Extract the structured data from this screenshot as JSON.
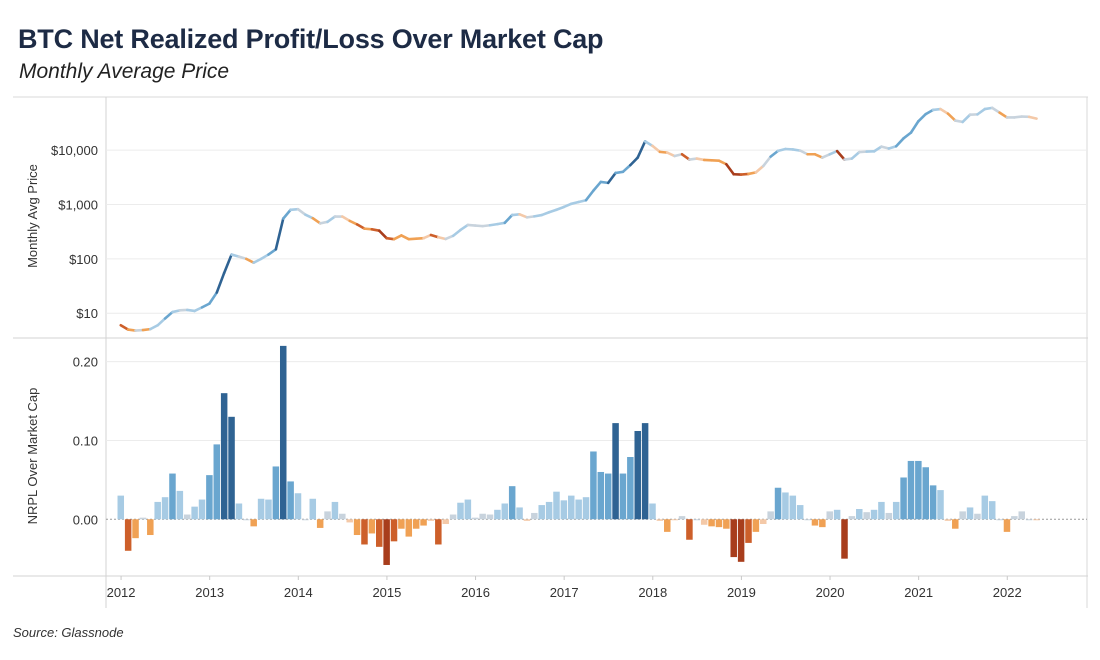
{
  "title": "BTC Net Realized Profit/Loss Over Market Cap",
  "subtitle": "Monthly Average Price",
  "source": "Source: Glassnode",
  "chart_data": [
    {
      "type": "line",
      "ylabel": "Monthly Avg Price",
      "yscale": "log",
      "ylim": [
        3.5,
        95000
      ],
      "yticks": [
        10,
        100,
        1000,
        10000
      ],
      "ytick_labels": [
        "$10",
        "$100",
        "$1,000",
        "$10,000"
      ],
      "xlim": [
        "2011-11-15",
        "2022-12-10"
      ],
      "grid": true,
      "line_colored_by": "NRPL Over Market Cap",
      "points": [
        [
          "2012-01",
          6.0,
          0.03
        ],
        [
          "2012-02",
          5.0,
          -0.04
        ],
        [
          "2012-03",
          4.8,
          -0.024
        ],
        [
          "2012-04",
          4.9,
          0.002
        ],
        [
          "2012-05",
          5.1,
          -0.02
        ],
        [
          "2012-06",
          6.0,
          0.022
        ],
        [
          "2012-07",
          8.0,
          0.028
        ],
        [
          "2012-08",
          10.5,
          0.058
        ],
        [
          "2012-09",
          11.3,
          0.036
        ],
        [
          "2012-10",
          11.5,
          0.006
        ],
        [
          "2012-11",
          11.0,
          0.016
        ],
        [
          "2012-12",
          12.8,
          0.025
        ],
        [
          "2013-01",
          15.0,
          0.056
        ],
        [
          "2013-02",
          24.0,
          0.095
        ],
        [
          "2013-03",
          55.0,
          0.16
        ],
        [
          "2013-04",
          120.0,
          0.13
        ],
        [
          "2013-05",
          110.0,
          0.02
        ],
        [
          "2013-06",
          100.0,
          0.0
        ],
        [
          "2013-07",
          85.0,
          -0.009
        ],
        [
          "2013-08",
          100.0,
          0.026
        ],
        [
          "2013-09",
          120.0,
          0.025
        ],
        [
          "2013-10",
          150.0,
          0.067
        ],
        [
          "2013-11",
          550.0,
          0.22
        ],
        [
          "2013-12",
          800.0,
          0.048
        ],
        [
          "2014-01",
          820.0,
          0.033
        ],
        [
          "2014-02",
          650.0,
          0.0
        ],
        [
          "2014-03",
          560.0,
          0.026
        ],
        [
          "2014-04",
          450.0,
          -0.011
        ],
        [
          "2014-05",
          480.0,
          0.01
        ],
        [
          "2014-06",
          600.0,
          0.022
        ],
        [
          "2014-07",
          600.0,
          0.007
        ],
        [
          "2014-08",
          500.0,
          -0.004
        ],
        [
          "2014-09",
          430.0,
          -0.02
        ],
        [
          "2014-10",
          360.0,
          -0.032
        ],
        [
          "2014-11",
          350.0,
          -0.018
        ],
        [
          "2014-12",
          330.0,
          -0.035
        ],
        [
          "2015-01",
          240.0,
          -0.058
        ],
        [
          "2015-02",
          230.0,
          -0.028
        ],
        [
          "2015-03",
          270.0,
          -0.012
        ],
        [
          "2015-04",
          230.0,
          -0.022
        ],
        [
          "2015-05",
          235.0,
          -0.012
        ],
        [
          "2015-06",
          240.0,
          -0.008
        ],
        [
          "2015-07",
          275.0,
          -0.002
        ],
        [
          "2015-08",
          250.0,
          -0.032
        ],
        [
          "2015-09",
          232.0,
          -0.006
        ],
        [
          "2015-10",
          265.0,
          0.006
        ],
        [
          "2015-11",
          340.0,
          0.021
        ],
        [
          "2015-12",
          420.0,
          0.025
        ],
        [
          "2016-01",
          410.0,
          0.002
        ],
        [
          "2016-02",
          400.0,
          0.007
        ],
        [
          "2016-03",
          415.0,
          0.006
        ],
        [
          "2016-04",
          435.0,
          0.012
        ],
        [
          "2016-05",
          460.0,
          0.02
        ],
        [
          "2016-06",
          640.0,
          0.042
        ],
        [
          "2016-07",
          660.0,
          0.015
        ],
        [
          "2016-08",
          580.0,
          -0.002
        ],
        [
          "2016-09",
          605.0,
          0.008
        ],
        [
          "2016-10",
          640.0,
          0.018
        ],
        [
          "2016-11",
          720.0,
          0.022
        ],
        [
          "2016-12",
          800.0,
          0.035
        ],
        [
          "2017-01",
          900.0,
          0.024
        ],
        [
          "2017-02",
          1030.0,
          0.03
        ],
        [
          "2017-03",
          1110.0,
          0.025
        ],
        [
          "2017-04",
          1200.0,
          0.028
        ],
        [
          "2017-05",
          1800.0,
          0.086
        ],
        [
          "2017-06",
          2600.0,
          0.06
        ],
        [
          "2017-07",
          2500.0,
          0.058
        ],
        [
          "2017-08",
          3800.0,
          0.122
        ],
        [
          "2017-09",
          4000.0,
          0.058
        ],
        [
          "2017-10",
          5300.0,
          0.079
        ],
        [
          "2017-11",
          7300.0,
          0.112
        ],
        [
          "2017-12",
          14500.0,
          0.122
        ],
        [
          "2018-01",
          12000.0,
          0.02
        ],
        [
          "2018-02",
          9300.0,
          -0.002
        ],
        [
          "2018-03",
          9000.0,
          -0.016
        ],
        [
          "2018-04",
          7800.0,
          -0.001
        ],
        [
          "2018-05",
          8400.0,
          0.004
        ],
        [
          "2018-06",
          6700.0,
          -0.026
        ],
        [
          "2018-07",
          7000.0,
          0.0
        ],
        [
          "2018-08",
          6600.0,
          -0.007
        ],
        [
          "2018-09",
          6500.0,
          -0.009
        ],
        [
          "2018-10",
          6400.0,
          -0.01
        ],
        [
          "2018-11",
          5500.0,
          -0.012
        ],
        [
          "2018-12",
          3600.0,
          -0.048
        ],
        [
          "2019-01",
          3550.0,
          -0.054
        ],
        [
          "2019-02",
          3650.0,
          -0.03
        ],
        [
          "2019-03",
          3900.0,
          -0.016
        ],
        [
          "2019-04",
          5100.0,
          -0.006
        ],
        [
          "2019-05",
          7600.0,
          0.01
        ],
        [
          "2019-06",
          9700.0,
          0.04
        ],
        [
          "2019-07",
          10500.0,
          0.034
        ],
        [
          "2019-08",
          10300.0,
          0.03
        ],
        [
          "2019-09",
          9800.0,
          0.018
        ],
        [
          "2019-10",
          8400.0,
          0.0
        ],
        [
          "2019-11",
          8400.0,
          -0.008
        ],
        [
          "2019-12",
          7300.0,
          -0.01
        ],
        [
          "2020-01",
          8400.0,
          0.01
        ],
        [
          "2020-02",
          9600.0,
          0.012
        ],
        [
          "2020-03",
          6700.0,
          -0.05
        ],
        [
          "2020-04",
          7000.0,
          0.004
        ],
        [
          "2020-05",
          9200.0,
          0.013
        ],
        [
          "2020-06",
          9400.0,
          0.009
        ],
        [
          "2020-07",
          9500.0,
          0.012
        ],
        [
          "2020-08",
          11600.0,
          0.022
        ],
        [
          "2020-09",
          10700.0,
          0.008
        ],
        [
          "2020-10",
          11800.0,
          0.022
        ],
        [
          "2020-11",
          16500.0,
          0.053
        ],
        [
          "2020-12",
          21000.0,
          0.074
        ],
        [
          "2021-01",
          34000.0,
          0.074
        ],
        [
          "2021-02",
          46000.0,
          0.066
        ],
        [
          "2021-03",
          55000.0,
          0.043
        ],
        [
          "2021-04",
          57000.0,
          0.037
        ],
        [
          "2021-05",
          47000.0,
          -0.002
        ],
        [
          "2021-06",
          35000.0,
          -0.012
        ],
        [
          "2021-07",
          33000.0,
          0.01
        ],
        [
          "2021-08",
          45000.0,
          0.015
        ],
        [
          "2021-09",
          45500.0,
          0.007
        ],
        [
          "2021-10",
          57000.0,
          0.03
        ],
        [
          "2021-11",
          60000.0,
          0.023
        ],
        [
          "2021-12",
          49000.0,
          0.0
        ],
        [
          "2022-01",
          40000.0,
          -0.016
        ],
        [
          "2022-02",
          40000.0,
          0.004
        ],
        [
          "2022-03",
          41500.0,
          0.01
        ],
        [
          "2022-04",
          41000.0,
          0.0
        ],
        [
          "2022-05",
          38000.0,
          -0.001
        ]
      ]
    },
    {
      "type": "bar",
      "ylabel": "NRPL Over Market Cap",
      "ylim": [
        -0.072,
        0.23
      ],
      "yticks": [
        0.0,
        0.1,
        0.2
      ],
      "ytick_labels": [
        "0.00",
        "0.10",
        "0.20"
      ],
      "xtick_labels": [
        "2012",
        "2013",
        "2014",
        "2015",
        "2016",
        "2017",
        "2018",
        "2019",
        "2020",
        "2021",
        "2022"
      ],
      "grid": true,
      "color_scale": {
        "positive": [
          "#c8d3dd",
          "#a7cbe4",
          "#6aa6cf",
          "#2f6393"
        ],
        "negative": [
          "#f4c9a8",
          "#f0a154",
          "#cd5f2a",
          "#a83d1c"
        ]
      }
    }
  ]
}
